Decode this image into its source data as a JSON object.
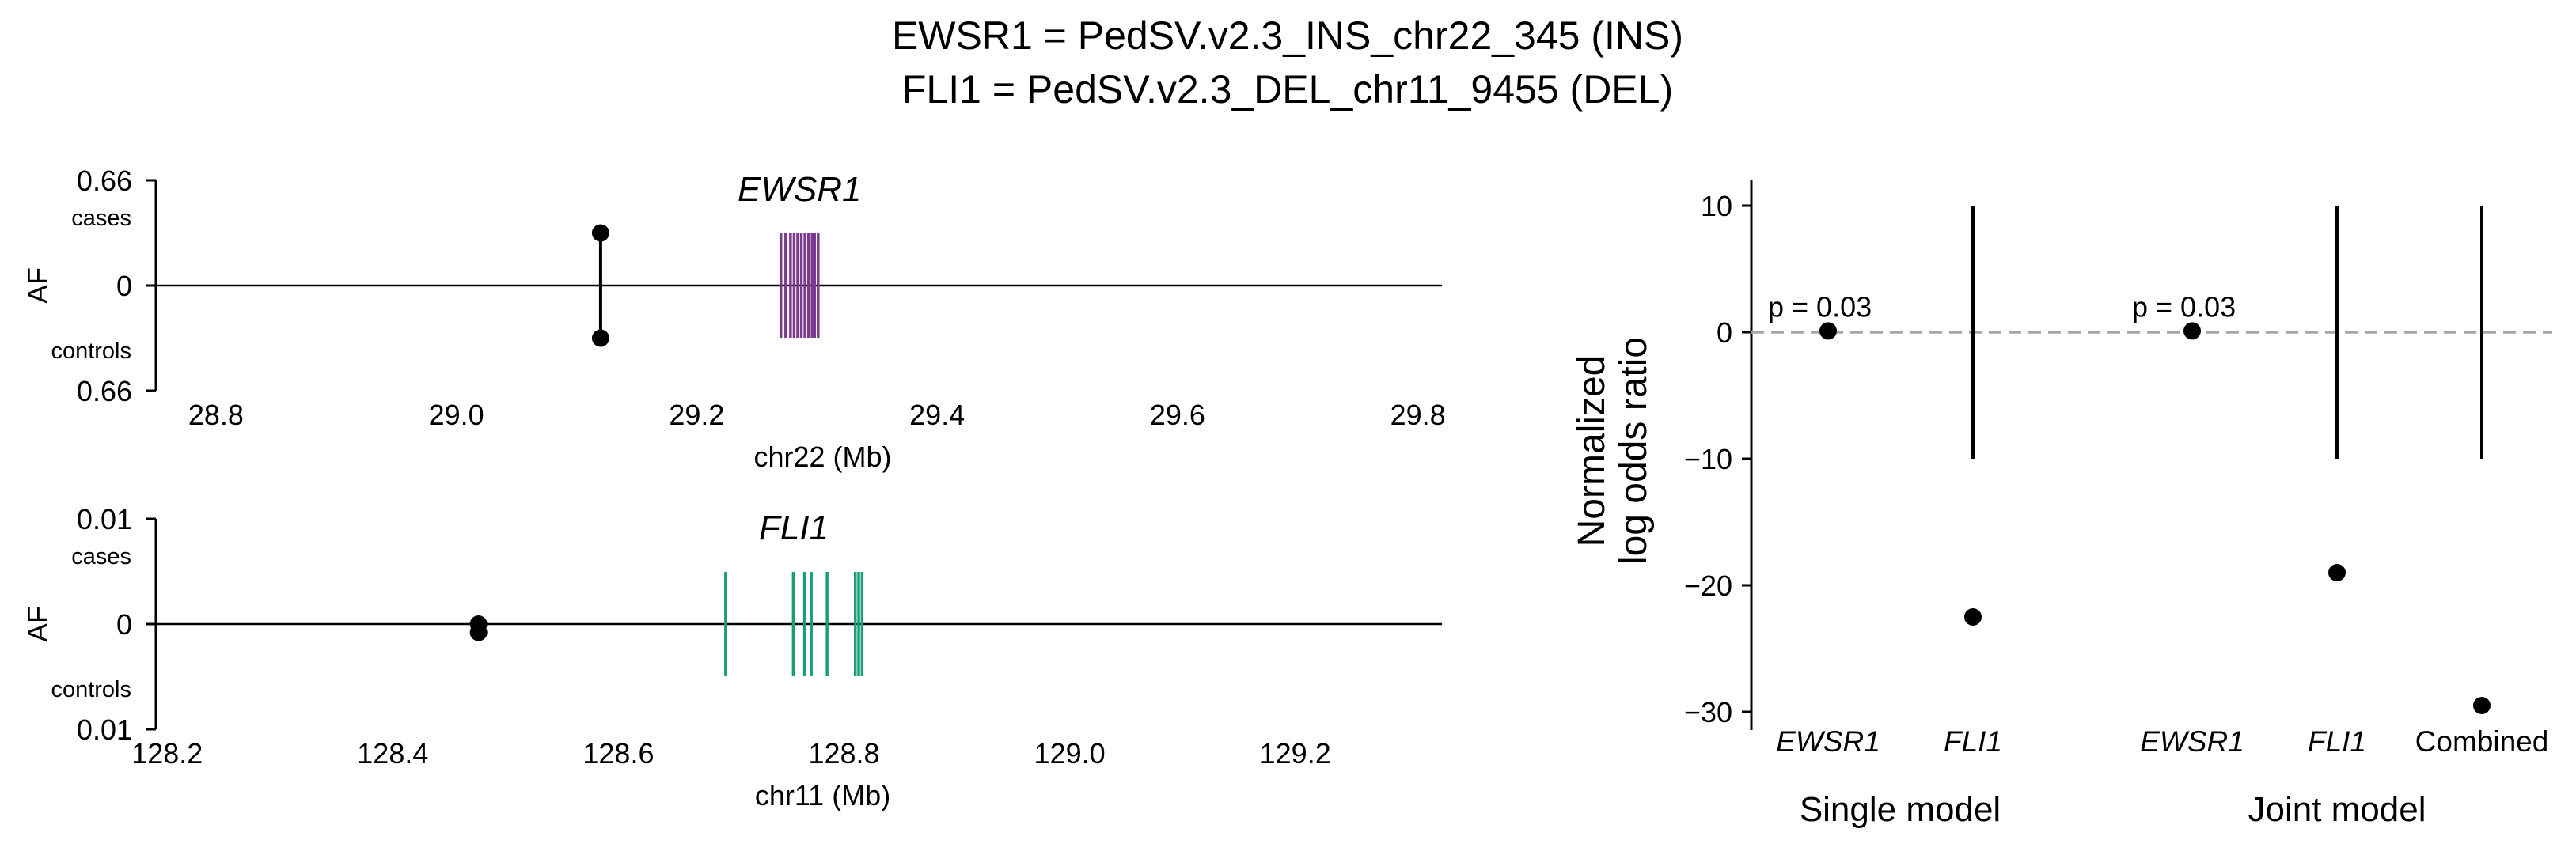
{
  "figure": {
    "title_line1": "EWSR1 = PedSV.v2.3_INS_chr22_345 (INS)",
    "title_line2": "FLI1 = PedSV.v2.3_DEL_chr11_9455 (DEL)"
  },
  "chart_data": [
    {
      "type": "scatter",
      "panel": "locus-ewsr1",
      "gene": "EWSR1",
      "ylabel": "AF",
      "y_top_tick": "0.66",
      "y_mid_tick": "0",
      "y_bottom_tick": "0.66",
      "cases_label": "cases",
      "controls_label": "controls",
      "xlabel": "chr22 (Mb)",
      "xlim": [
        28.75,
        29.82
      ],
      "x_ticks": [
        "28.8",
        "29.0",
        "29.2",
        "29.4",
        "29.6",
        "29.8"
      ],
      "af_max": 0.66,
      "variant": {
        "position_mb": 29.12,
        "case_af": 0.33,
        "control_af": 0.33
      },
      "exon_color": "#7B3A8F",
      "exons_mb": [
        29.27,
        29.274,
        29.278,
        29.281,
        29.284,
        29.287,
        29.29,
        29.293,
        29.296,
        29.298,
        29.301
      ]
    },
    {
      "type": "scatter",
      "panel": "locus-fli1",
      "gene": "FLI1",
      "ylabel": "AF",
      "y_top_tick": "0.01",
      "y_mid_tick": "0",
      "y_bottom_tick": "0.01",
      "cases_label": "cases",
      "controls_label": "controls",
      "xlabel": "chr11 (Mb)",
      "xlim": [
        128.19,
        129.33
      ],
      "x_ticks": [
        "128.2",
        "128.4",
        "128.6",
        "128.8",
        "129.0",
        "129.2"
      ],
      "af_max": 0.01,
      "variant": {
        "position_mb": 128.476,
        "case_af": 0.0,
        "control_af": 0.0008
      },
      "exon_color": "#1A9E77",
      "exons_mb": [
        128.695,
        128.755,
        128.765,
        128.771,
        128.785,
        128.81,
        128.813,
        128.816
      ]
    },
    {
      "type": "scatter",
      "panel": "odds-ratio",
      "ylabel_line1": "Normalized",
      "ylabel_line2": "log odds ratio",
      "ylim": [
        -31.5,
        12
      ],
      "y_ticks": [
        "10",
        "0",
        "−10",
        "−20",
        "−30"
      ],
      "y_tick_values": [
        10,
        0,
        -10,
        -20,
        -30
      ],
      "reference_line": 0,
      "x_labels": [
        "EWSR1",
        "FLI1",
        "EWSR1",
        "FLI1",
        "Combined"
      ],
      "group_labels": [
        "Single model",
        "Joint model"
      ],
      "points": [
        {
          "label": "EWSR1",
          "group": "Single model",
          "value": 0.1,
          "annotation": "p = 0.03"
        },
        {
          "label": "FLI1",
          "group": "Single model",
          "value": -22.5,
          "ci_low": -10,
          "ci_high": 10
        },
        {
          "label": "EWSR1",
          "group": "Joint model",
          "value": 0.1,
          "annotation": "p = 0.03"
        },
        {
          "label": "FLI1",
          "group": "Joint model",
          "value": -19,
          "ci_low": -10,
          "ci_high": 10
        },
        {
          "label": "Combined",
          "group": "Joint model",
          "value": -29.5,
          "ci_low": -10,
          "ci_high": 10
        }
      ]
    }
  ]
}
